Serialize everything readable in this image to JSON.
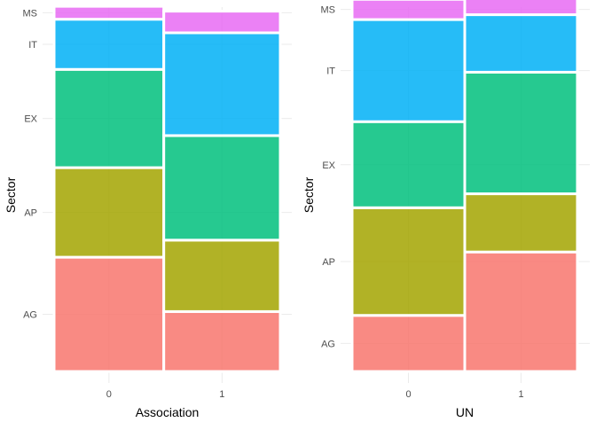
{
  "chart_data": [
    {
      "type": "mosaic",
      "xlabel": "Association",
      "ylabel": "Sector",
      "categories": [
        "0",
        "1"
      ],
      "column_widths": [
        0.485,
        0.515
      ],
      "segment_order": [
        "AG",
        "AP",
        "EX",
        "IT",
        "MS"
      ],
      "series": [
        {
          "name": "AG",
          "values": [
            0.328,
            0.172
          ]
        },
        {
          "name": "AP",
          "values": [
            0.257,
            0.205
          ]
        },
        {
          "name": "EX",
          "values": [
            0.282,
            0.3
          ]
        },
        {
          "name": "IT",
          "values": [
            0.144,
            0.295
          ]
        },
        {
          "name": "MS",
          "values": [
            0.037,
            0.062
          ]
        }
      ],
      "ytick_labels": [
        "AG",
        "AP",
        "EX",
        "IT",
        "MS"
      ],
      "xtick_labels": [
        "0",
        "1"
      ],
      "colors": {
        "AG": "#f8766d",
        "AP": "#a3a500",
        "EX": "#00bf7d",
        "IT": "#00b0f6",
        "MS": "#e76bf3"
      },
      "grid": true,
      "legend": "none"
    },
    {
      "type": "mosaic",
      "xlabel": "UN",
      "ylabel": "Sector",
      "categories": [
        "0",
        "1"
      ],
      "column_widths": [
        0.5,
        0.5
      ],
      "segment_order": [
        "AG",
        "AP",
        "EX",
        "IT",
        "MS"
      ],
      "series": [
        {
          "name": "AG",
          "values": [
            0.161,
            0.343
          ]
        },
        {
          "name": "AP",
          "values": [
            0.309,
            0.167
          ]
        },
        {
          "name": "EX",
          "values": [
            0.247,
            0.349
          ]
        },
        {
          "name": "IT",
          "values": [
            0.293,
            0.165
          ]
        },
        {
          "name": "MS",
          "values": [
            0.058,
            0.077
          ]
        }
      ],
      "ytick_labels": [
        "AG",
        "AP",
        "EX",
        "IT",
        "MS"
      ],
      "xtick_labels": [
        "0",
        "1"
      ],
      "colors": {
        "AG": "#f8766d",
        "AP": "#a3a500",
        "EX": "#00bf7d",
        "IT": "#00b0f6",
        "MS": "#e76bf3"
      },
      "grid": true,
      "legend": "none"
    }
  ]
}
